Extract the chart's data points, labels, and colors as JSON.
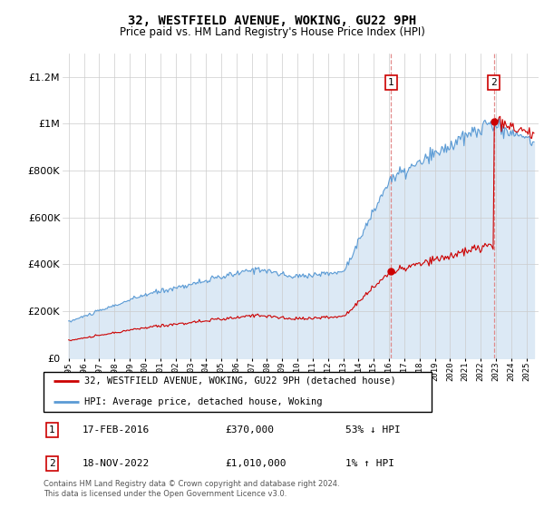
{
  "title": "32, WESTFIELD AVENUE, WOKING, GU22 9PH",
  "subtitle": "Price paid vs. HM Land Registry's House Price Index (HPI)",
  "hpi_label": "HPI: Average price, detached house, Woking",
  "price_label": "32, WESTFIELD AVENUE, WOKING, GU22 9PH (detached house)",
  "hpi_color": "#5b9bd5",
  "hpi_fill_color": "#dce9f5",
  "price_color": "#cc0000",
  "annotation1_date": "17-FEB-2016",
  "annotation1_price": "£370,000",
  "annotation1_hpi": "53% ↓ HPI",
  "annotation2_date": "18-NOV-2022",
  "annotation2_price": "£1,010,000",
  "annotation2_hpi": "1% ↑ HPI",
  "ylim_max": 1300000,
  "footer": "Contains HM Land Registry data © Crown copyright and database right 2024.\nThis data is licensed under the Open Government Licence v3.0.",
  "marker1_year": 2016.12,
  "marker1_value": 370000,
  "marker2_year": 2022.88,
  "marker2_value": 1010000,
  "figwidth": 6.0,
  "figheight": 5.6,
  "dpi": 100
}
